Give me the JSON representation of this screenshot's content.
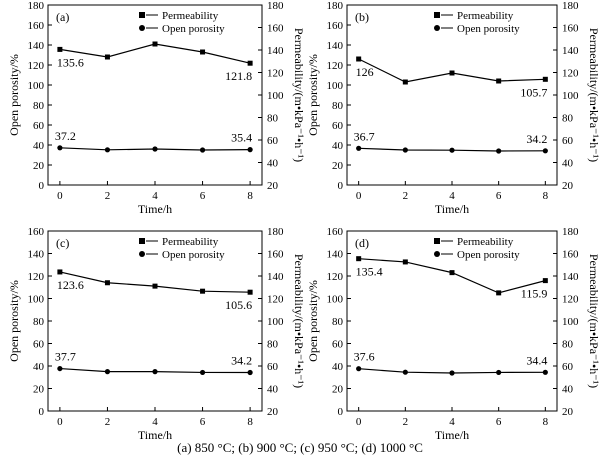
{
  "caption": "(a)  850  °C;  (b)  900  °C;  (c)  950  °C;  (d) 1000 °C",
  "chart_data": [
    {
      "type": "line",
      "panel_label": "(a)",
      "xlabel": "Time/h",
      "ylabel_left": "Open porosity/%",
      "ylabel_right": "Permeability/(m•kPa⁻¹•h⁻¹)",
      "x": [
        0,
        2,
        4,
        6,
        8
      ],
      "xticks": [
        "0",
        "2",
        "4",
        "6",
        "8"
      ],
      "ylim_left": [
        0,
        180
      ],
      "ylim_right": [
        20,
        180
      ],
      "yticks_left": [
        "0",
        "20",
        "40",
        "60",
        "80",
        "100",
        "120",
        "140",
        "160",
        "180"
      ],
      "yticks_right": [
        "20",
        "40",
        "60",
        "80",
        "100",
        "120",
        "140",
        "160",
        "180"
      ],
      "legend": [
        "Permeability",
        "Open porosity"
      ],
      "legend_position": "top-right",
      "series": [
        {
          "name": "Permeability",
          "marker": "square",
          "axis": "left",
          "values": [
            135.6,
            128,
            141,
            133,
            121.8
          ]
        },
        {
          "name": "Open porosity",
          "marker": "circle",
          "axis": "left",
          "values": [
            37.2,
            35.2,
            36,
            35,
            35.4
          ]
        }
      ],
      "labels": {
        "perm_first": "135.6",
        "perm_last": "121.8",
        "por_first": "37.2",
        "por_last": "35.4"
      }
    },
    {
      "type": "line",
      "panel_label": "(b)",
      "xlabel": "Time/h",
      "ylabel_left": "Open porosity/%",
      "ylabel_right": "Permeability/(m•kPa⁻¹•h⁻¹)",
      "x": [
        0,
        2,
        4,
        6,
        8
      ],
      "xticks": [
        "0",
        "2",
        "4",
        "6",
        "8"
      ],
      "ylim_left": [
        0,
        180
      ],
      "ylim_right": [
        20,
        180
      ],
      "yticks_left": [
        "0",
        "20",
        "40",
        "60",
        "80",
        "100",
        "120",
        "140",
        "160",
        "180"
      ],
      "yticks_right": [
        "20",
        "40",
        "60",
        "80",
        "100",
        "120",
        "140",
        "160",
        "180"
      ],
      "legend": [
        "Permeability",
        "Open porosity"
      ],
      "legend_position": "top-right",
      "series": [
        {
          "name": "Permeability",
          "marker": "square",
          "axis": "left",
          "values": [
            126,
            103,
            112,
            104,
            105.7
          ]
        },
        {
          "name": "Open porosity",
          "marker": "circle",
          "axis": "left",
          "values": [
            36.7,
            35,
            34.8,
            34,
            34.2
          ]
        }
      ],
      "labels": {
        "perm_first": "126",
        "perm_last": "105.7",
        "por_first": "36.7",
        "por_last": "34.2"
      }
    },
    {
      "type": "line",
      "panel_label": "(c)",
      "xlabel": "Time/h",
      "ylabel_left": "Open porosity/%",
      "ylabel_right": "Permeability/(m•kPa⁻¹•h⁻¹)",
      "x": [
        0,
        2,
        4,
        6,
        8
      ],
      "xticks": [
        "0",
        "2",
        "4",
        "6",
        "8"
      ],
      "ylim_left": [
        0,
        160
      ],
      "ylim_right": [
        20,
        180
      ],
      "yticks_left": [
        "0",
        "20",
        "40",
        "60",
        "80",
        "100",
        "120",
        "140",
        "160"
      ],
      "yticks_right": [
        "20",
        "40",
        "60",
        "80",
        "100",
        "120",
        "140",
        "160",
        "180"
      ],
      "legend": [
        "Permeability",
        "Open porosity"
      ],
      "legend_position": "top-right",
      "series": [
        {
          "name": "Permeability",
          "marker": "square",
          "axis": "left",
          "values": [
            123.6,
            114,
            111,
            106.5,
            105.6
          ]
        },
        {
          "name": "Open porosity",
          "marker": "circle",
          "axis": "left",
          "values": [
            37.7,
            35,
            35,
            34.3,
            34.2
          ]
        }
      ],
      "labels": {
        "perm_first": "123.6",
        "perm_last": "105.6",
        "por_first": "37.7",
        "por_last": "34.2"
      }
    },
    {
      "type": "line",
      "panel_label": "(d)",
      "xlabel": "Time/h",
      "ylabel_left": "Open porosity/%",
      "ylabel_right": "Permeability/(m•kPa⁻¹•h⁻¹)",
      "x": [
        0,
        2,
        4,
        6,
        8
      ],
      "xticks": [
        "0",
        "2",
        "4",
        "6",
        "8"
      ],
      "ylim_left": [
        0,
        160
      ],
      "ylim_right": [
        20,
        180
      ],
      "yticks_left": [
        "0",
        "20",
        "40",
        "60",
        "80",
        "100",
        "120",
        "140",
        "160"
      ],
      "yticks_right": [
        "20",
        "40",
        "60",
        "80",
        "100",
        "120",
        "140",
        "160",
        "180"
      ],
      "legend": [
        "Permeability",
        "Open porosity"
      ],
      "legend_position": "top-right",
      "series": [
        {
          "name": "Permeability",
          "marker": "square",
          "axis": "left",
          "values": [
            135.4,
            132.5,
            123,
            105,
            115.9
          ]
        },
        {
          "name": "Open porosity",
          "marker": "circle",
          "axis": "left",
          "values": [
            37.6,
            34.5,
            33.8,
            34.3,
            34.4
          ]
        }
      ],
      "labels": {
        "perm_first": "135.4",
        "perm_last": "115.9",
        "por_first": "37.6",
        "por_last": "34.4"
      }
    }
  ]
}
